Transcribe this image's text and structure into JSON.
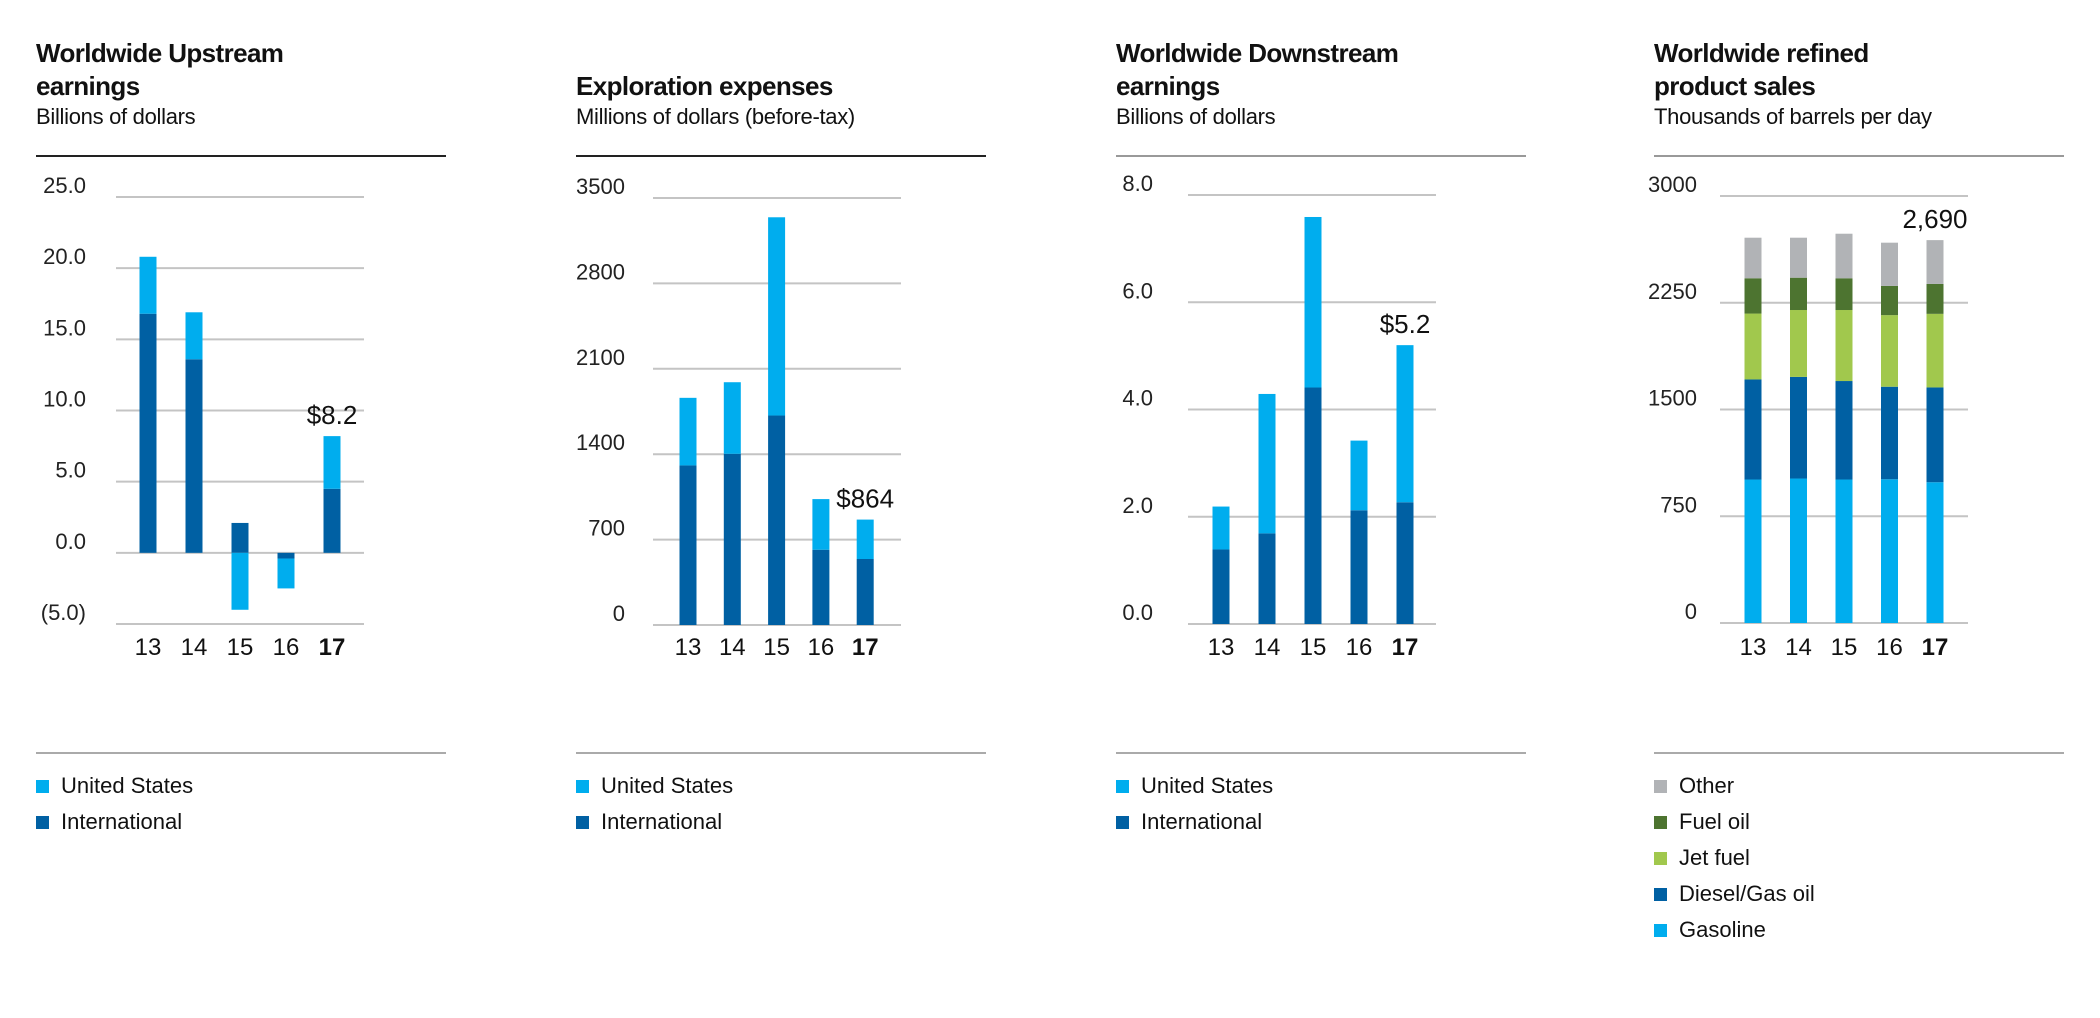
{
  "colors": {
    "united_states": "#00ADEE",
    "international": "#0060A3",
    "gasoline": "#00ADEE",
    "diesel_gas_oil": "#0060A3",
    "jet_fuel": "#A1C84D",
    "fuel_oil": "#4D7430",
    "other": "#B1B3B6",
    "gridline": "#C4C4C4"
  },
  "chart_data": [
    {
      "type": "bar",
      "stacked": true,
      "title": "Worldwide Upstream earnings",
      "subtitle": "Billions of dollars",
      "categories": [
        "13",
        "14",
        "15",
        "16",
        "17"
      ],
      "highlight_category": "17",
      "yticks": [
        "25.0",
        "20.0",
        "15.0",
        "10.0",
        "5.0",
        "0.0",
        "(5.0)"
      ],
      "ytick_values": [
        25,
        20,
        15,
        10,
        5,
        0,
        -5
      ],
      "ylim": [
        -5,
        25
      ],
      "grid": true,
      "series": [
        {
          "name": "International",
          "color": "#0060A3",
          "values": [
            16.8,
            13.6,
            2.1,
            -0.4,
            4.5
          ]
        },
        {
          "name": "United States",
          "color": "#00ADEE",
          "values": [
            4.0,
            3.3,
            -4.0,
            -2.1,
            3.7
          ]
        }
      ],
      "annotation": {
        "category": "17",
        "value": 8.2,
        "text": "$8.2"
      },
      "legend": [
        "United States",
        "International"
      ],
      "legend_colors": [
        "#00ADEE",
        "#0060A3"
      ]
    },
    {
      "type": "bar",
      "stacked": true,
      "title": "Exploration expenses",
      "subtitle": "Millions of dollars (before-tax)",
      "categories": [
        "13",
        "14",
        "15",
        "16",
        "17"
      ],
      "highlight_category": "17",
      "yticks": [
        "3500",
        "2800",
        "2100",
        "1400",
        "700",
        "0"
      ],
      "ytick_values": [
        3500,
        2800,
        2100,
        1400,
        700,
        0
      ],
      "ylim": [
        0,
        3500
      ],
      "grid": true,
      "series": [
        {
          "name": "International",
          "color": "#0060A3",
          "values": [
            1308,
            1403,
            1717,
            617,
            541
          ]
        },
        {
          "name": "United States",
          "color": "#00ADEE",
          "values": [
            554,
            587,
            1625,
            415,
            323
          ]
        }
      ],
      "annotation": {
        "category": "17",
        "value": 864,
        "text": "$864"
      },
      "legend": [
        "United States",
        "International"
      ],
      "legend_colors": [
        "#00ADEE",
        "#0060A3"
      ]
    },
    {
      "type": "bar",
      "stacked": true,
      "title": "Worldwide Downstream earnings",
      "subtitle": "Billions of dollars",
      "categories": [
        "13",
        "14",
        "15",
        "16",
        "17"
      ],
      "highlight_category": "17",
      "yticks": [
        "8.0",
        "6.0",
        "4.0",
        "2.0",
        "0.0"
      ],
      "ytick_values": [
        8,
        6,
        4,
        2,
        0
      ],
      "ylim": [
        0,
        8
      ],
      "grid": true,
      "series": [
        {
          "name": "International",
          "color": "#0060A3",
          "values": [
            1.39,
            1.69,
            4.41,
            2.12,
            2.27
          ]
        },
        {
          "name": "United States",
          "color": "#00ADEE",
          "values": [
            0.8,
            2.6,
            3.18,
            1.3,
            2.93
          ]
        }
      ],
      "annotation": {
        "category": "17",
        "value": 5.2,
        "text": "$5.2"
      },
      "legend": [
        "United States",
        "International"
      ],
      "legend_colors": [
        "#00ADEE",
        "#0060A3"
      ]
    },
    {
      "type": "bar",
      "stacked": true,
      "title": "Worldwide refined product sales",
      "subtitle": "Thousands of barrels per day",
      "categories": [
        "13",
        "14",
        "15",
        "16",
        "17"
      ],
      "highlight_category": "17",
      "yticks": [
        "3000",
        "2250",
        "1500",
        "750",
        "0"
      ],
      "ytick_values": [
        3000,
        2250,
        1500,
        750,
        0
      ],
      "ylim": [
        0,
        3000
      ],
      "grid": true,
      "series": [
        {
          "name": "Gasoline",
          "color": "#00ADEE",
          "values": [
            1008,
            1015,
            1008,
            1010,
            989
          ]
        },
        {
          "name": "Diesel/Gas oil",
          "color": "#0060A3",
          "values": [
            703,
            714,
            692,
            650,
            666
          ]
        },
        {
          "name": "Jet fuel",
          "color": "#A1C84D",
          "values": [
            463,
            470,
            499,
            503,
            517
          ]
        },
        {
          "name": "Fuel oil",
          "color": "#4D7430",
          "values": [
            248,
            227,
            223,
            205,
            210
          ]
        },
        {
          "name": "Other",
          "color": "#B1B3B6",
          "values": [
            285,
            281,
            313,
            304,
            308
          ]
        }
      ],
      "annotation": {
        "category": "17",
        "value": 2690,
        "text": "2,690"
      },
      "legend": [
        "Other",
        "Fuel oil",
        "Jet fuel",
        "Diesel/Gas oil",
        "Gasoline"
      ],
      "legend_colors": [
        "#B1B3B6",
        "#4D7430",
        "#A1C84D",
        "#0060A3",
        "#00ADEE"
      ]
    }
  ]
}
